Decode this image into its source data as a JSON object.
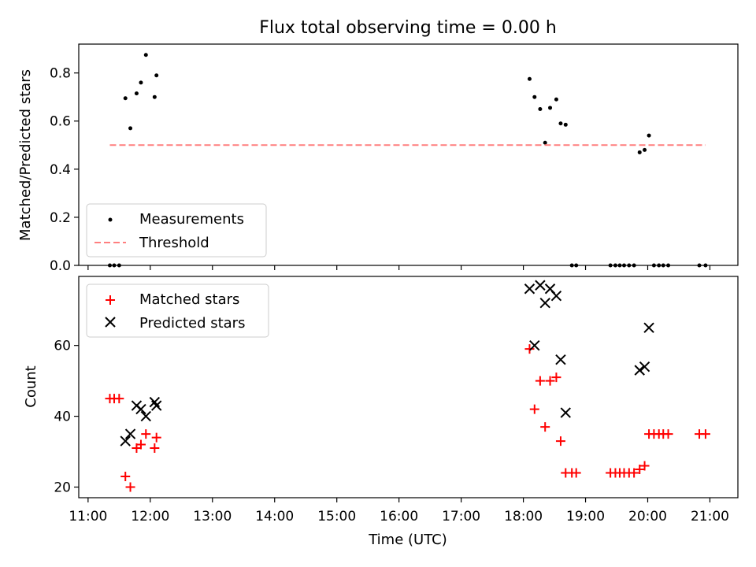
{
  "figure_title": "Flux total observing time = 0.00 h",
  "x_axis": {
    "label": "Time (UTC)",
    "range_hours": [
      10.85,
      21.45
    ],
    "ticks": [
      11,
      12,
      13,
      14,
      15,
      16,
      17,
      18,
      19,
      20,
      21
    ],
    "tick_labels": [
      "11:00",
      "12:00",
      "13:00",
      "14:00",
      "15:00",
      "16:00",
      "17:00",
      "18:00",
      "19:00",
      "20:00",
      "21:00"
    ]
  },
  "chart_data": [
    {
      "type": "scatter",
      "panel": "top",
      "ylabel": "Matched/Predicted stars",
      "ylim": [
        0,
        0.92
      ],
      "yticks": [
        0.0,
        0.2,
        0.4,
        0.6,
        0.8
      ],
      "ytick_labels": [
        "0.0",
        "0.2",
        "0.4",
        "0.6",
        "0.8"
      ],
      "legend_position": "lower-left",
      "series": [
        {
          "name": "Measurements",
          "marker": "dot",
          "color": "#000000",
          "points": [
            [
              11.35,
              0.0
            ],
            [
              11.42,
              0.0
            ],
            [
              11.5,
              0.0
            ],
            [
              11.6,
              0.695
            ],
            [
              11.68,
              0.57
            ],
            [
              11.78,
              0.715
            ],
            [
              11.85,
              0.76
            ],
            [
              11.93,
              0.875
            ],
            [
              12.07,
              0.7
            ],
            [
              12.1,
              0.79
            ],
            [
              18.1,
              0.775
            ],
            [
              18.18,
              0.7
            ],
            [
              18.27,
              0.65
            ],
            [
              18.35,
              0.51
            ],
            [
              18.43,
              0.655
            ],
            [
              18.53,
              0.69
            ],
            [
              18.6,
              0.59
            ],
            [
              18.68,
              0.585
            ],
            [
              18.78,
              0.0
            ],
            [
              18.85,
              0.0
            ],
            [
              19.4,
              0.0
            ],
            [
              19.48,
              0.0
            ],
            [
              19.55,
              0.0
            ],
            [
              19.62,
              0.0
            ],
            [
              19.7,
              0.0
            ],
            [
              19.78,
              0.0
            ],
            [
              19.87,
              0.47
            ],
            [
              19.95,
              0.48
            ],
            [
              20.02,
              0.54
            ],
            [
              20.1,
              0.0
            ],
            [
              20.18,
              0.0
            ],
            [
              20.25,
              0.0
            ],
            [
              20.33,
              0.0
            ],
            [
              20.83,
              0.0
            ],
            [
              20.93,
              0.0
            ]
          ]
        },
        {
          "name": "Threshold",
          "style": "dashed-line",
          "color": "#ff7f7f",
          "points": [
            [
              11.35,
              0.5
            ],
            [
              20.93,
              0.5
            ]
          ]
        }
      ]
    },
    {
      "type": "scatter",
      "panel": "bottom",
      "ylabel": "Count",
      "ylim": [
        17,
        79.5
      ],
      "yticks": [
        20,
        40,
        60
      ],
      "ytick_labels": [
        "20",
        "40",
        "60"
      ],
      "legend_position": "upper-left",
      "series": [
        {
          "name": "Matched stars",
          "marker": "plus",
          "color": "#ff0000",
          "points": [
            [
              11.35,
              45
            ],
            [
              11.42,
              45
            ],
            [
              11.5,
              45
            ],
            [
              11.6,
              23
            ],
            [
              11.68,
              20
            ],
            [
              11.78,
              31
            ],
            [
              11.85,
              32
            ],
            [
              11.93,
              35
            ],
            [
              12.07,
              31
            ],
            [
              12.1,
              34
            ],
            [
              18.1,
              59
            ],
            [
              18.18,
              42
            ],
            [
              18.27,
              50
            ],
            [
              18.35,
              37
            ],
            [
              18.43,
              50
            ],
            [
              18.53,
              51
            ],
            [
              18.6,
              33
            ],
            [
              18.68,
              24
            ],
            [
              18.78,
              24
            ],
            [
              18.85,
              24
            ],
            [
              19.4,
              24
            ],
            [
              19.48,
              24
            ],
            [
              19.55,
              24
            ],
            [
              19.62,
              24
            ],
            [
              19.7,
              24
            ],
            [
              19.78,
              24
            ],
            [
              19.87,
              25
            ],
            [
              19.95,
              26
            ],
            [
              20.02,
              35
            ],
            [
              20.1,
              35
            ],
            [
              20.18,
              35
            ],
            [
              20.25,
              35
            ],
            [
              20.33,
              35
            ],
            [
              20.83,
              35
            ],
            [
              20.93,
              35
            ]
          ]
        },
        {
          "name": "Predicted stars",
          "marker": "x",
          "color": "#000000",
          "points": [
            [
              11.6,
              33
            ],
            [
              11.68,
              35
            ],
            [
              11.78,
              43
            ],
            [
              11.85,
              42
            ],
            [
              11.93,
              40
            ],
            [
              12.07,
              44
            ],
            [
              12.1,
              43
            ],
            [
              18.1,
              76
            ],
            [
              18.18,
              60
            ],
            [
              18.27,
              77
            ],
            [
              18.35,
              72
            ],
            [
              18.43,
              76
            ],
            [
              18.53,
              74
            ],
            [
              18.6,
              56
            ],
            [
              18.68,
              41
            ],
            [
              19.87,
              53
            ],
            [
              19.95,
              54
            ],
            [
              20.02,
              65
            ]
          ]
        }
      ]
    }
  ]
}
